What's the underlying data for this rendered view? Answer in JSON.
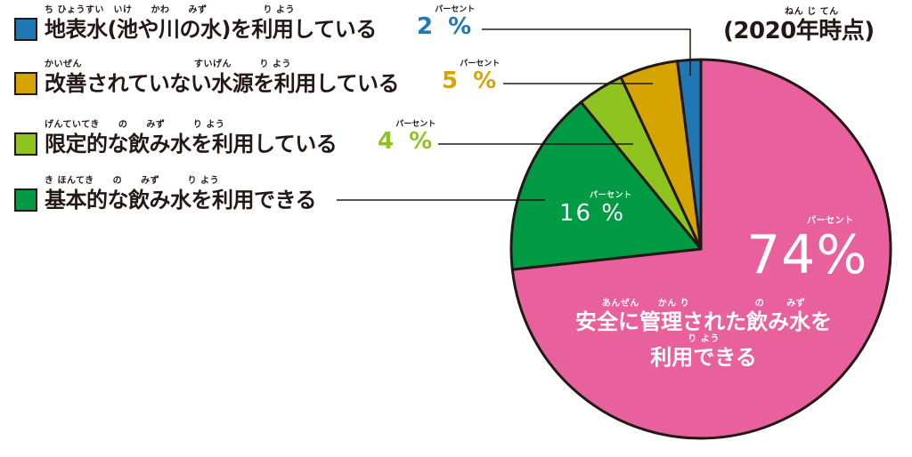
{
  "year_note": {
    "ruby": "ねん じ てん",
    "text": "(2020年時点)"
  },
  "legend": [
    {
      "ruby": "ち ひょうすい　いけ　　かわ　　みず　　　　　　り よう",
      "label": "地表水(池や川の水)を利用している",
      "percent_ruby": "パーセント",
      "percent": "2 %",
      "color": "#1f77b4"
    },
    {
      "ruby": "かいぜん　　　　　　　　　　　　すいげん　　　り よう",
      "label": "改善されていない水源を利用している",
      "percent_ruby": "パーセント",
      "percent": "5 %",
      "color": "#d6a400"
    },
    {
      "ruby": "げんていてき　　の　　みず　　　り よう",
      "label": "限定的な飲み水を利用している",
      "percent_ruby": "パーセント",
      "percent": "4 %",
      "color": "#8fc31f"
    },
    {
      "ruby": "き ほんてき　　の　　みず　　　り よう",
      "label": "基本的な飲み水を利用できる",
      "percent_ruby": "",
      "percent": "",
      "color": "#009944"
    }
  ],
  "inner_labels": {
    "green": {
      "ruby": "パーセント",
      "value": "16 %"
    },
    "pink": {
      "ruby": "パーセント",
      "value": "74%",
      "desc_ruby_1": "あんぜん　　かん り　　　　　　　の　　 みず",
      "desc_1": "安全に管理された飲み水を",
      "desc_ruby_2": "り よう",
      "desc_2": "利用できる"
    }
  },
  "chart_data": {
    "type": "pie",
    "title": "",
    "annotation": "(2020年時点)",
    "start_angle": "12 o'clock, clockwise",
    "categories": [
      "安全に管理された飲み水を利用できる",
      "基本的な飲み水を利用できる",
      "限定的な飲み水を利用している",
      "改善されていない水源を利用している",
      "地表水(池や川の水)を利用している"
    ],
    "values": [
      74,
      16,
      4,
      5,
      2
    ],
    "unit": "%",
    "colors": [
      "#e8609c",
      "#009944",
      "#8fc31f",
      "#d6a400",
      "#1f77b4"
    ],
    "legend_position": "left"
  }
}
